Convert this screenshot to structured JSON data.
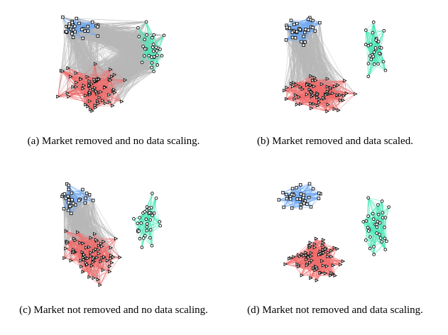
{
  "panels": [
    {
      "id": "a",
      "caption": "(a) Market removed and no data scaling."
    },
    {
      "id": "b",
      "caption": "(b) Market removed and data scaled."
    },
    {
      "id": "c",
      "caption": "(c) Market not removed and no data scaling."
    },
    {
      "id": "d",
      "caption": "(d) Market not removed and data scaling."
    }
  ],
  "colors": {
    "blue_cluster": "#6fa8f0",
    "green_cluster": "#4ee8b8",
    "red_cluster": "#f06c6c",
    "cross_edges": "#b8b8b8",
    "node_stroke": "#111111"
  },
  "node_markers": {
    "blue_cluster": "square",
    "green_cluster": "circle",
    "red_cluster": "triangle"
  }
}
